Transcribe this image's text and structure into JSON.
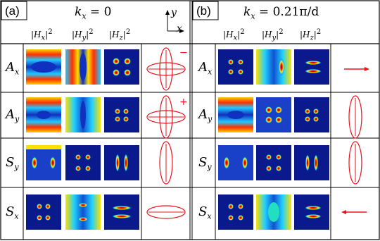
{
  "panels": [
    {
      "label": "(a)",
      "kx": "k_x = 0",
      "kx_lhs": "k",
      "kx_sub": "x",
      "kx_rhs": " = 0",
      "axis_y": "y",
      "axis_x": "x"
    },
    {
      "label": "(b)",
      "kx": "k_x = 0.21π/d",
      "kx_lhs": "k",
      "kx_sub": "x",
      "kx_rhs": " = 0.21π/d"
    }
  ],
  "columns": [
    "|Hx|2",
    "|Hy|2",
    "|Hz|2"
  ],
  "rows": [
    {
      "mode": "A_x",
      "base": "A",
      "sub": "x"
    },
    {
      "mode": "A_y",
      "base": "A",
      "sub": "y"
    },
    {
      "mode": "S_y",
      "base": "S",
      "sub": "y"
    },
    {
      "mode": "S_x",
      "base": "S",
      "sub": "x"
    }
  ],
  "symbols": {
    "a": [
      "−",
      "+",
      "",
      ""
    ],
    "b": [
      "",
      "+ −",
      "+ +",
      ""
    ]
  },
  "colors": {
    "accent": "#e8131b",
    "map_bg": "#0a1a8c",
    "grid": "#000000"
  }
}
